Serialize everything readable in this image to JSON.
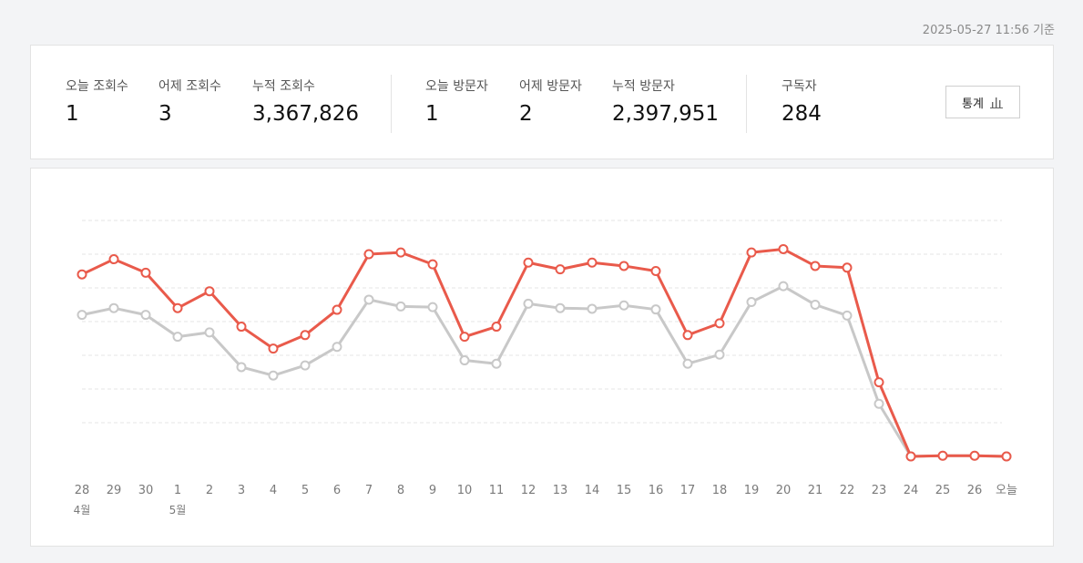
{
  "header": {
    "timestamp": "2025-05-27 11:56 기준"
  },
  "stats": {
    "today_views": {
      "label": "오늘 조회수",
      "value": "1"
    },
    "yesterday_views": {
      "label": "어제 조회수",
      "value": "3"
    },
    "total_views": {
      "label": "누적 조회수",
      "value": "3,367,826"
    },
    "today_visitors": {
      "label": "오늘 방문자",
      "value": "1"
    },
    "yesterday_visitors": {
      "label": "어제 방문자",
      "value": "2"
    },
    "total_visitors": {
      "label": "누적 방문자",
      "value": "2,397,951"
    },
    "subscribers": {
      "label": "구독자",
      "value": "284"
    },
    "stats_button_label": "통계",
    "stats_button_icon": "bar-chart-icon"
  },
  "chart_data": {
    "type": "line",
    "categories": [
      "28",
      "29",
      "30",
      "1",
      "2",
      "3",
      "4",
      "5",
      "6",
      "7",
      "8",
      "9",
      "10",
      "11",
      "12",
      "13",
      "14",
      "15",
      "16",
      "17",
      "18",
      "19",
      "20",
      "21",
      "22",
      "23",
      "24",
      "25",
      "26",
      "오늘"
    ],
    "month_labels": [
      {
        "category_index": 0,
        "text": "4월"
      },
      {
        "category_index": 3,
        "text": "5월"
      }
    ],
    "y_scale": {
      "min": 0,
      "max": 7
    },
    "grid": true,
    "series": [
      {
        "color": "#e95a4b",
        "values": [
          5.4,
          5.85,
          5.45,
          4.4,
          4.9,
          3.85,
          3.2,
          3.6,
          4.35,
          6.0,
          6.05,
          5.7,
          3.55,
          3.85,
          5.75,
          5.55,
          5.75,
          5.65,
          5.5,
          3.6,
          3.95,
          6.05,
          6.15,
          5.65,
          5.6,
          2.2,
          0.0,
          0.02,
          0.02,
          0.0
        ]
      },
      {
        "color": "#c8c8c8",
        "values": [
          4.2,
          4.4,
          4.2,
          3.55,
          3.68,
          2.65,
          2.4,
          2.7,
          3.25,
          4.65,
          4.45,
          4.43,
          2.85,
          2.75,
          4.53,
          4.4,
          4.38,
          4.48,
          4.36,
          2.75,
          3.02,
          4.58,
          5.05,
          4.5,
          4.18,
          1.56,
          0.0,
          0.02,
          0.02,
          0.0
        ]
      }
    ]
  }
}
